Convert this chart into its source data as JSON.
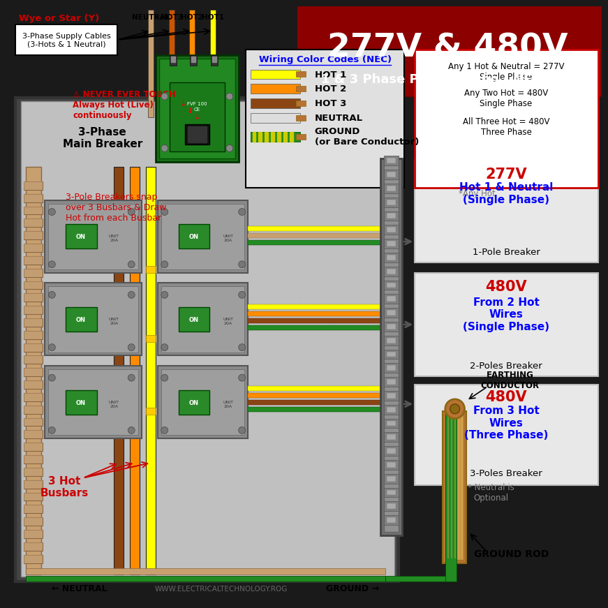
{
  "title_line1": "277V & 480V",
  "title_line2": "1 & 3 Phase Panel Wiring - NEC - US",
  "title_bg": "#8B0000",
  "bg_color": "#1a1a1a",
  "label_top_left": "Wye or Star (Y)",
  "supply_cable_label": "3-Phase Supply Cables\n(3-Hots & 1 Neutral)",
  "wire_labels": [
    "NEUTRAL",
    "HOT3",
    "HOT2",
    "HOT1"
  ],
  "wire_colors_top": [
    "#c8a070",
    "#cc5500",
    "#ff8c00",
    "#ffff00"
  ],
  "color_code_title": "Wiring Color Codes (NEC)",
  "color_codes": [
    {
      "label": "HOT 1",
      "insulation": "#ffff00",
      "conductor": "#cc7700"
    },
    {
      "label": "HOT 2",
      "insulation": "#ff8c00",
      "conductor": "#cc7700"
    },
    {
      "label": "HOT 3",
      "insulation": "#8B4513",
      "conductor": "#cc7700"
    },
    {
      "label": "NEUTRAL",
      "insulation": "#dddddd",
      "conductor": "#cc7700"
    },
    {
      "label": "GROUND\n(or Bare Conductor)",
      "insulation": "#228B22",
      "conductor": "#cc7700",
      "stripe": "#ffff00"
    }
  ],
  "info_box_texts": [
    "Any 1 Hot & Neutral = 277V\nSingle Phase",
    "Any Two Hot = 480V\nSingle Phase",
    "All Three Hot = 480V\nThree Phase"
  ],
  "warning_text": "⚠ NEVER EVER TOUCH\nAlways Hot (Live)\ncontinuously",
  "breaker_label": "3-Phase\nMain Breaker",
  "busbar_label": "3 Hot\nBusbars",
  "busbar_label2": "3-Pole Breakers snap\nover 3 Busbars & Draw\nHot from each Busbar",
  "neutral_label": "NEUTRAL",
  "ground_label": "GROUND",
  "ground_rod_label": "GROUND ROD",
  "earthing_label": "EARTHING\nCONDUCTOR",
  "neutral_optional": "* Neutral is\nOptional",
  "any_hot": "*Any Hot",
  "website": "WWW.ELECTRICALTECHNOLOGY.ROG",
  "hot1_color": "#ffff00",
  "hot2_color": "#ff8c00",
  "hot3_color": "#8B4513",
  "neutral_color": "#c8a070",
  "ground_color": "#228B22",
  "red_color": "#cc0000",
  "panel_outer": "#555555",
  "panel_inner": "#c0c0c0",
  "breaker_green": "#2a8a2a",
  "breaker_gray": "#9a9a9a"
}
